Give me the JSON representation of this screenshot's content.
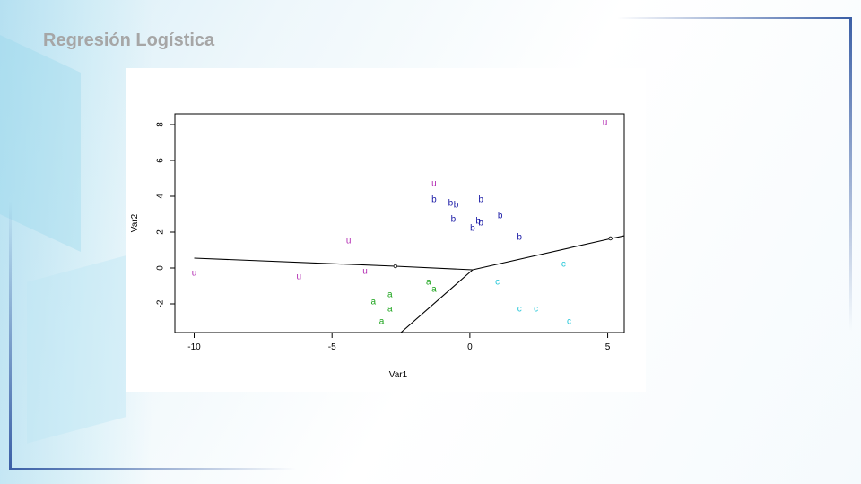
{
  "slide": {
    "title": "Regresión Logística"
  },
  "colors": {
    "u": "#b22ab2",
    "b": "#1a1aa6",
    "c": "#22c6d8",
    "a": "#1aa31a"
  },
  "chart_data": {
    "type": "scatter",
    "title": "",
    "xlabel": "Var1",
    "ylabel": "Var2",
    "xlim": [
      -10.7,
      5.6
    ],
    "ylim": [
      -3.6,
      8.6
    ],
    "xticks": [
      -10,
      -5,
      0,
      5
    ],
    "yticks": [
      -2,
      0,
      2,
      4,
      6,
      8
    ],
    "xtick_labels": [
      "-10",
      "-5",
      "0",
      "5"
    ],
    "ytick_labels": [
      "-2",
      "0",
      "2",
      "4",
      "6",
      "8"
    ],
    "grid": false,
    "points": [
      {
        "x": 4.9,
        "y": 8.1,
        "label": "u"
      },
      {
        "x": -1.3,
        "y": 4.7,
        "label": "u"
      },
      {
        "x": -4.4,
        "y": 1.5,
        "label": "u"
      },
      {
        "x": -10.0,
        "y": -0.3,
        "label": "u"
      },
      {
        "x": -6.2,
        "y": -0.5,
        "label": "u"
      },
      {
        "x": -3.8,
        "y": -0.2,
        "label": "u"
      },
      {
        "x": -1.3,
        "y": 3.8,
        "label": "b"
      },
      {
        "x": -0.7,
        "y": 3.6,
        "label": "b"
      },
      {
        "x": -0.5,
        "y": 3.5,
        "label": "b"
      },
      {
        "x": 0.4,
        "y": 3.8,
        "label": "b"
      },
      {
        "x": -0.6,
        "y": 2.7,
        "label": "b"
      },
      {
        "x": 0.3,
        "y": 2.6,
        "label": "b"
      },
      {
        "x": 0.4,
        "y": 2.5,
        "label": "b"
      },
      {
        "x": 1.1,
        "y": 2.9,
        "label": "b"
      },
      {
        "x": 0.1,
        "y": 2.2,
        "label": "b"
      },
      {
        "x": 1.8,
        "y": 1.7,
        "label": "b"
      },
      {
        "x": 3.4,
        "y": 0.2,
        "label": "c"
      },
      {
        "x": 1.0,
        "y": -0.8,
        "label": "c"
      },
      {
        "x": 1.8,
        "y": -2.3,
        "label": "c"
      },
      {
        "x": 2.4,
        "y": -2.3,
        "label": "c"
      },
      {
        "x": 3.6,
        "y": -3.0,
        "label": "c"
      },
      {
        "x": -1.5,
        "y": -0.8,
        "label": "a"
      },
      {
        "x": -1.3,
        "y": -1.2,
        "label": "a"
      },
      {
        "x": -2.9,
        "y": -1.5,
        "label": "a"
      },
      {
        "x": -3.5,
        "y": -1.9,
        "label": "a"
      },
      {
        "x": -2.9,
        "y": -2.3,
        "label": "a"
      },
      {
        "x": -3.2,
        "y": -3.0,
        "label": "a"
      }
    ],
    "boundaries": [
      [
        [
          -10.0,
          0.55
        ],
        [
          -2.7,
          0.1
        ],
        [
          0.1,
          -0.1
        ]
      ],
      [
        [
          0.1,
          -0.1
        ],
        [
          5.0,
          1.6
        ],
        [
          5.6,
          1.8
        ]
      ],
      [
        [
          0.1,
          -0.1
        ],
        [
          -2.5,
          -3.6
        ]
      ]
    ],
    "boundary_markers": [
      [
        -2.7,
        0.1
      ],
      [
        5.1,
        1.65
      ]
    ]
  }
}
